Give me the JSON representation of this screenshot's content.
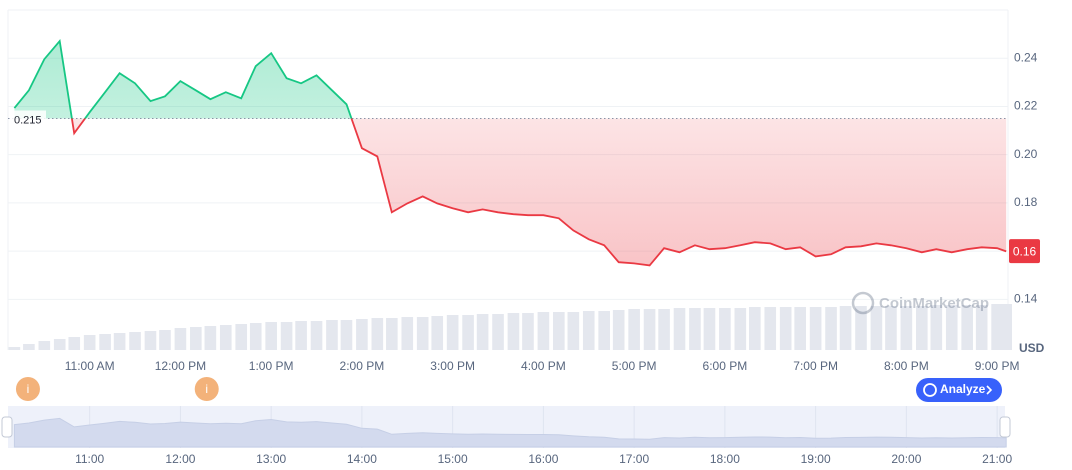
{
  "chart_data": {
    "type": "line",
    "x": [
      10.17,
      10.33,
      10.5,
      10.67,
      10.83,
      11,
      11.17,
      11.33,
      11.5,
      11.67,
      11.83,
      12,
      12.17,
      12.33,
      12.5,
      12.67,
      12.83,
      13,
      13.17,
      13.33,
      13.5,
      13.67,
      13.83,
      14,
      14.17,
      14.33,
      14.5,
      14.67,
      14.83,
      15,
      15.17,
      15.33,
      15.5,
      15.67,
      15.83,
      16,
      16.17,
      16.33,
      16.5,
      16.67,
      16.83,
      17,
      17.17,
      17.33,
      17.5,
      17.67,
      17.83,
      18,
      18.17,
      18.33,
      18.5,
      18.67,
      18.83,
      19,
      19.17,
      19.33,
      19.5,
      19.67,
      19.83,
      20,
      20.17,
      20.33,
      20.5,
      20.67,
      20.83,
      21,
      21.1
    ],
    "values": [
      0.2193,
      0.2267,
      0.2396,
      0.2471,
      0.2089,
      0.2176,
      0.2259,
      0.2338,
      0.2296,
      0.2222,
      0.2242,
      0.2305,
      0.2267,
      0.223,
      0.2259,
      0.2234,
      0.2367,
      0.2421,
      0.2317,
      0.2296,
      0.2329,
      0.2267,
      0.2209,
      0.2027,
      0.1993,
      0.1761,
      0.1798,
      0.1827,
      0.1798,
      0.1778,
      0.1761,
      0.1773,
      0.1761,
      0.1753,
      0.1749,
      0.1749,
      0.1736,
      0.1686,
      0.1649,
      0.1624,
      0.1554,
      0.1549,
      0.1541,
      0.1612,
      0.1595,
      0.1624,
      0.1608,
      0.1612,
      0.1624,
      0.1637,
      0.1632,
      0.1608,
      0.1616,
      0.1578,
      0.1587,
      0.1616,
      0.162,
      0.1632,
      0.1624,
      0.1612,
      0.1595,
      0.1608,
      0.1595,
      0.1608,
      0.1616,
      0.1612,
      0.1599
    ],
    "colors": {
      "above": "#16c784",
      "below": "#ea3943"
    },
    "baseline": 0.215,
    "last_price": 0.16,
    "y_axis_label": "USD",
    "xlim": [
      10.1,
      21.12
    ],
    "ylim": [
      0.119,
      0.26
    ],
    "yticks": [
      0.14,
      0.16,
      0.18,
      {
        "value": 0.2,
        "label": "0.20"
      },
      0.22,
      0.24
    ],
    "xticks": [
      {
        "value": 11,
        "label": "11:00 AM"
      },
      {
        "value": 12,
        "label": "12:00 PM"
      },
      {
        "value": 13,
        "label": "1:00 PM"
      },
      {
        "value": 14,
        "label": "2:00 PM"
      },
      {
        "value": 15,
        "label": "3:00 PM"
      },
      {
        "value": 16,
        "label": "4:00 PM"
      },
      {
        "value": 17,
        "label": "5:00 PM"
      },
      {
        "value": 18,
        "label": "6:00 PM"
      },
      {
        "value": 19,
        "label": "7:00 PM"
      },
      {
        "value": 20,
        "label": "8:00 PM"
      },
      {
        "value": 21,
        "label": "9:00 PM"
      }
    ],
    "grid": true,
    "volume": {
      "color": "#e4e7ee",
      "ylim": [
        0,
        100
      ],
      "values": [
        3,
        6,
        9,
        11,
        13,
        15,
        16,
        17,
        18,
        19,
        20,
        22,
        23,
        24,
        25,
        26,
        27,
        28,
        28,
        29,
        29,
        30,
        30,
        31,
        32,
        32,
        33,
        33,
        34,
        35,
        35,
        36,
        36,
        37,
        37,
        38,
        38,
        38,
        39,
        39,
        40,
        41,
        41,
        41,
        42,
        42,
        42,
        42,
        42,
        43,
        43,
        43,
        43,
        43,
        43,
        44,
        44,
        44,
        44,
        44,
        44,
        45,
        45,
        45,
        45,
        46,
        46
      ]
    },
    "navigator": {
      "xticks": [
        {
          "value": 11,
          "label": "11:00"
        },
        {
          "value": 12,
          "label": "12:00"
        },
        {
          "value": 13,
          "label": "13:00"
        },
        {
          "value": 14,
          "label": "14:00"
        },
        {
          "value": 15,
          "label": "15:00"
        },
        {
          "value": 16,
          "label": "16:00"
        },
        {
          "value": 17,
          "label": "17:00"
        },
        {
          "value": 18,
          "label": "18:00"
        },
        {
          "value": 19,
          "label": "19:00"
        },
        {
          "value": 20,
          "label": "20:00"
        },
        {
          "value": 21,
          "label": "21:00"
        }
      ]
    },
    "events": [
      {
        "x": 10.32,
        "label": "i"
      },
      {
        "x": 12.29,
        "label": "i"
      }
    ],
    "watermark": "CoinMarketCap",
    "button": "Analyze"
  }
}
